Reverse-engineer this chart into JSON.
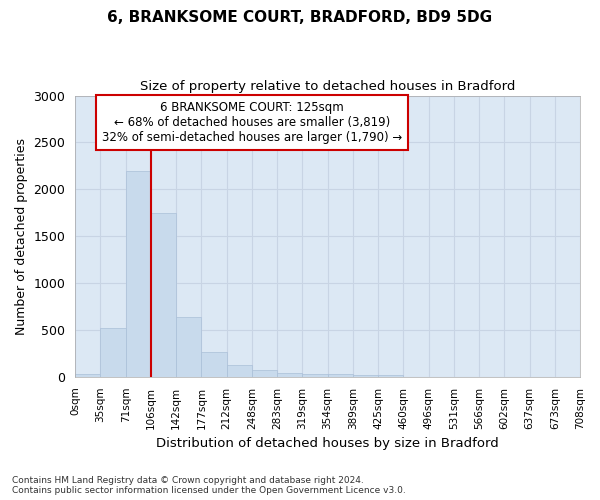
{
  "title_line1": "6, BRANKSOME COURT, BRADFORD, BD9 5DG",
  "title_line2": "Size of property relative to detached houses in Bradford",
  "xlabel": "Distribution of detached houses by size in Bradford",
  "ylabel": "Number of detached properties",
  "bar_values": [
    30,
    520,
    2200,
    1750,
    640,
    265,
    130,
    70,
    40,
    30,
    25,
    15,
    20,
    0,
    0,
    0,
    0,
    0,
    0,
    0
  ],
  "bin_labels": [
    "0sqm",
    "35sqm",
    "71sqm",
    "106sqm",
    "142sqm",
    "177sqm",
    "212sqm",
    "248sqm",
    "283sqm",
    "319sqm",
    "354sqm",
    "389sqm",
    "425sqm",
    "460sqm",
    "496sqm",
    "531sqm",
    "566sqm",
    "602sqm",
    "637sqm",
    "673sqm",
    "708sqm"
  ],
  "bar_color": "#c8daec",
  "bar_edge_color": "#aabfd8",
  "vline_x": 3.0,
  "vline_color": "#cc0000",
  "annotation_text": "6 BRANKSOME COURT: 125sqm\n← 68% of detached houses are smaller (3,819)\n32% of semi-detached houses are larger (1,790) →",
  "annotation_box_facecolor": "#ffffff",
  "annotation_box_edgecolor": "#cc0000",
  "ylim": [
    0,
    3000
  ],
  "yticks": [
    0,
    500,
    1000,
    1500,
    2000,
    2500,
    3000
  ],
  "grid_color": "#c8d4e4",
  "plot_bg_color": "#dce8f4",
  "fig_bg_color": "#ffffff",
  "footnote": "Contains HM Land Registry data © Crown copyright and database right 2024.\nContains public sector information licensed under the Open Government Licence v3.0."
}
